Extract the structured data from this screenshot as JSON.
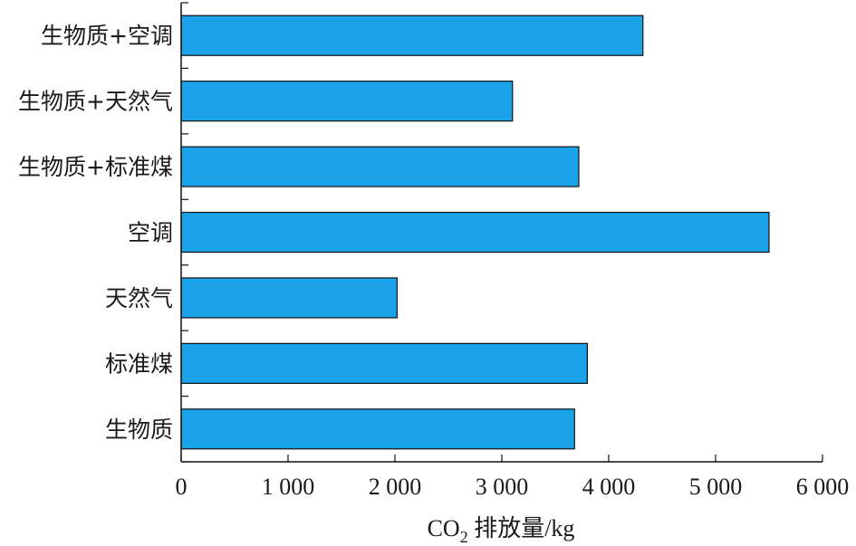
{
  "chart_data": {
    "type": "bar",
    "orientation": "horizontal",
    "categories": [
      "生物质+空调",
      "生物质+天然气",
      "生物质+标准煤",
      "空调",
      "天然气",
      "标准煤",
      "生物质"
    ],
    "values": [
      4320,
      3100,
      3720,
      5500,
      2020,
      3800,
      3680
    ],
    "xlim": [
      0,
      6000
    ],
    "xticks": [
      0,
      1000,
      2000,
      3000,
      4000,
      5000,
      6000
    ],
    "xtick_labels": [
      "0",
      "1 000",
      "2 000",
      "3 000",
      "4 000",
      "5 000",
      "6 000"
    ],
    "xlabel": {
      "prefix": "CO",
      "subscript": "2",
      "suffix": " 排放量/kg"
    },
    "ylabel": "",
    "title": "",
    "bar_color": "#1aa3e8",
    "bar_edge_color": "#111111",
    "grid": false,
    "legend": "none"
  }
}
